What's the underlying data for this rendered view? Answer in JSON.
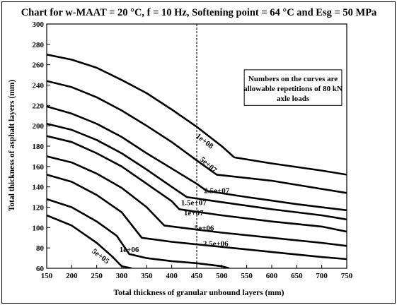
{
  "chart_data": {
    "type": "line",
    "title": "Chart for w-MAAT = 20 °C, f = 10 Hz, Softening point = 64 °C and Esg = 50 MPa",
    "xlabel": "Total thickness of granular unbound layers (mm)",
    "ylabel": "Total thickness of asphalt layers (mm)",
    "xlim": [
      150,
      750
    ],
    "ylim": [
      60,
      300
    ],
    "xticks": [
      150,
      200,
      250,
      300,
      350,
      400,
      450,
      500,
      550,
      600,
      650,
      700,
      750
    ],
    "yticks": [
      60,
      80,
      100,
      120,
      140,
      160,
      180,
      200,
      220,
      240,
      260,
      280,
      300
    ],
    "grid": false,
    "reference_line_x": 450,
    "annotation": [
      "Numbers on the curves are",
      "allowable repetitions of 80 kN",
      "axle loads"
    ],
    "series": [
      {
        "name": "1e+08",
        "label_at": [
          463,
          183
        ],
        "label_rot": 38,
        "x": [
          150,
          200,
          250,
          300,
          350,
          400,
          450,
          500,
          525,
          600,
          700,
          750
        ],
        "y": [
          270,
          265,
          257,
          245,
          232,
          216,
          199,
          180,
          169,
          163,
          156,
          152
        ]
      },
      {
        "name": "5e+07",
        "label_at": [
          470,
          160
        ],
        "label_rot": 42,
        "x": [
          150,
          200,
          250,
          300,
          350,
          400,
          450,
          490,
          600,
          700,
          750
        ],
        "y": [
          244,
          238,
          228,
          215,
          200,
          184,
          166,
          152,
          146,
          138,
          134
        ]
      },
      {
        "name": "2.5e+07",
        "label_at": [
          490,
          134
        ],
        "label_rot": 0,
        "x": [
          150,
          200,
          250,
          300,
          350,
          400,
          450,
          470,
          550,
          650,
          750
        ],
        "y": [
          219,
          212,
          202,
          189,
          173,
          158,
          143,
          136,
          130,
          123,
          117
        ]
      },
      {
        "name": "1.5e+07",
        "label_at": [
          444,
          122
        ],
        "label_rot": 0,
        "x": [
          150,
          200,
          250,
          300,
          350,
          400,
          430,
          500,
          600,
          700,
          750
        ],
        "y": [
          202,
          196,
          186,
          173,
          157,
          140,
          130,
          125,
          118,
          112,
          108
        ]
      },
      {
        "name": "1e+07",
        "label_at": [
          444,
          112
        ],
        "label_rot": 0,
        "x": [
          150,
          200,
          250,
          300,
          350,
          400,
          415,
          500,
          600,
          700,
          750
        ],
        "y": [
          190,
          184,
          173,
          160,
          143,
          126,
          118,
          112,
          106,
          101,
          96
        ]
      },
      {
        "name": "5e+06",
        "label_at": [
          465,
          97
        ],
        "label_rot": 0,
        "x": [
          150,
          200,
          250,
          300,
          350,
          385,
          450,
          500,
          600,
          700,
          750
        ],
        "y": [
          170,
          164,
          153,
          139,
          120,
          102,
          98,
          95,
          90,
          85,
          82
        ]
      },
      {
        "name": "2.5e+06",
        "label_at": [
          488,
          82
        ],
        "label_rot": 0,
        "x": [
          150,
          200,
          250,
          300,
          340,
          400,
          500,
          600,
          700,
          750
        ],
        "y": [
          152,
          145,
          132,
          115,
          90,
          86,
          81,
          76,
          71,
          69
        ]
      },
      {
        "name": "1e+06",
        "label_at": [
          315,
          76
        ],
        "label_rot": 0,
        "x": [
          150,
          200,
          250,
          290,
          315,
          350,
          400,
          450,
          500,
          515
        ],
        "y": [
          128,
          120,
          106,
          92,
          74,
          70,
          67,
          65,
          62,
          60
        ]
      },
      {
        "name": "5e+05",
        "label_at": [
          255,
          70
        ],
        "label_rot": 38,
        "x": [
          150,
          200,
          250,
          280,
          300,
          320
        ],
        "y": [
          112,
          102,
          85,
          72,
          62,
          60
        ]
      }
    ]
  }
}
